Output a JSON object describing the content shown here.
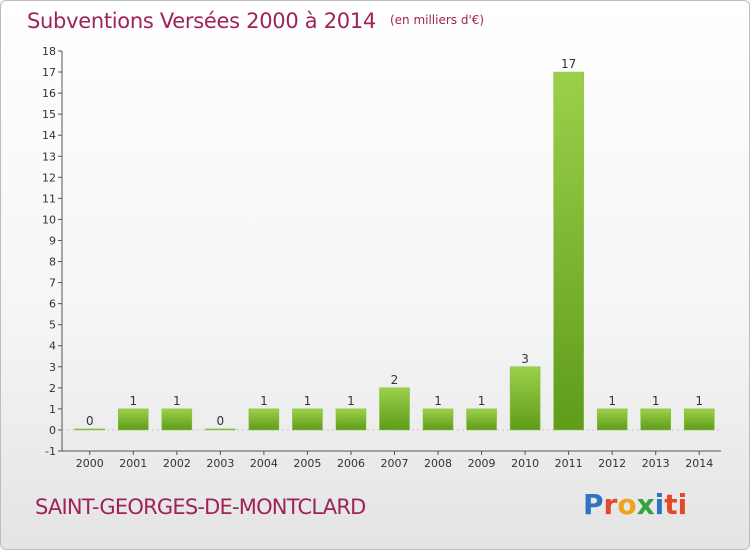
{
  "chart_data": {
    "type": "bar",
    "title": "Subventions Versées 2000 à 2014",
    "unit_note": "(en milliers d'€)",
    "categories": [
      "2000",
      "2001",
      "2002",
      "2003",
      "2004",
      "2005",
      "2006",
      "2007",
      "2008",
      "2009",
      "2010",
      "2011",
      "2012",
      "2013",
      "2014"
    ],
    "values": [
      0,
      1,
      1,
      0,
      1,
      1,
      1,
      2,
      1,
      1,
      3,
      17,
      1,
      1,
      1
    ],
    "ylim": [
      -1,
      18
    ],
    "yticks": [
      -1,
      0,
      1,
      2,
      3,
      4,
      5,
      6,
      7,
      8,
      9,
      10,
      11,
      12,
      13,
      14,
      15,
      16,
      17,
      18
    ],
    "grid": false,
    "bar_color": "#8cc63e",
    "bar_color_dark": "#5e9c1a"
  },
  "footer": {
    "commune": "SAINT-GEORGES-DE-MONTCLARD",
    "brand": "Proxiti",
    "brand_parts": [
      "P",
      "r",
      "o",
      "x",
      "i",
      "ti"
    ]
  },
  "colors": {
    "title": "#a0225a",
    "brand_blue": "#2f73c5",
    "brand_red": "#e4482a",
    "brand_orange": "#f0a21c",
    "brand_green": "#37a23b"
  }
}
